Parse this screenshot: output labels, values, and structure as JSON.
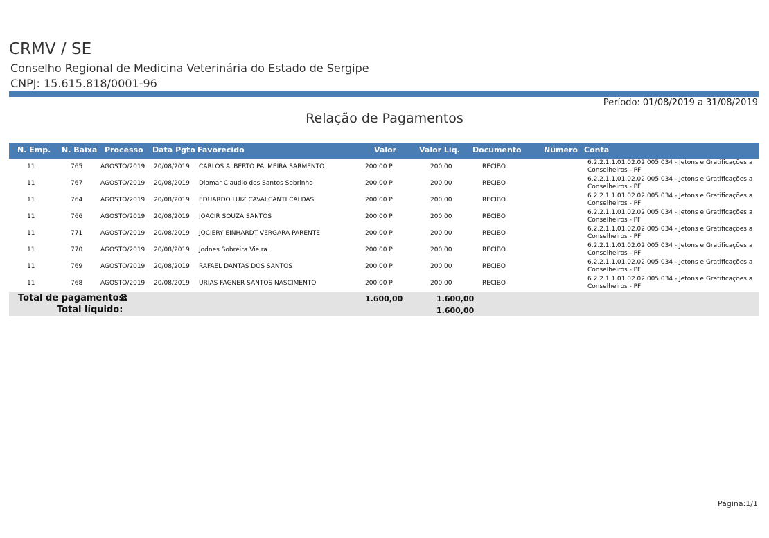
{
  "header": {
    "org": "CRMV / SE",
    "org_name": "Conselho Regional de Medicina Veterinária do Estado de Sergipe",
    "cnpj": "CNPJ: 15.615.818/0001-96",
    "periodo": "Período: 01/08/2019 a 31/08/2019",
    "title": "Relação de Pagamentos"
  },
  "table": {
    "columns": [
      "N. Emp.",
      "N. Baixa",
      "Processo",
      "Data Pgto",
      "Favorecido",
      "Valor",
      "Valor Liq.",
      "Documento",
      "Número",
      "Conta"
    ],
    "rows": [
      {
        "emp": "11",
        "baixa": "765",
        "processo": "AGOSTO/2019",
        "data": "20/08/2019",
        "favorecido": "CARLOS ALBERTO PALMEIRA SARMENTO",
        "valor": "200,00 P",
        "liq": "200,00",
        "documento": "RECIBO",
        "numero": "",
        "conta": "6.2.2.1.1.01.02.02.005.034 - Jetons e Gratificações a Conselheiros - PF"
      },
      {
        "emp": "11",
        "baixa": "767",
        "processo": "AGOSTO/2019",
        "data": "20/08/2019",
        "favorecido": "Diomar Claudio dos Santos Sobrinho",
        "valor": "200,00 P",
        "liq": "200,00",
        "documento": "RECIBO",
        "numero": "",
        "conta": "6.2.2.1.1.01.02.02.005.034 - Jetons e Gratificações a Conselheiros - PF"
      },
      {
        "emp": "11",
        "baixa": "764",
        "processo": "AGOSTO/2019",
        "data": "20/08/2019",
        "favorecido": "EDUARDO LUIZ CAVALCANTI CALDAS",
        "valor": "200,00 P",
        "liq": "200,00",
        "documento": "RECIBO",
        "numero": "",
        "conta": "6.2.2.1.1.01.02.02.005.034 - Jetons e Gratificações a Conselheiros - PF"
      },
      {
        "emp": "11",
        "baixa": "766",
        "processo": "AGOSTO/2019",
        "data": "20/08/2019",
        "favorecido": "JOACIR SOUZA SANTOS",
        "valor": "200,00 P",
        "liq": "200,00",
        "documento": "RECIBO",
        "numero": "",
        "conta": "6.2.2.1.1.01.02.02.005.034 - Jetons e Gratificações a Conselheiros - PF"
      },
      {
        "emp": "11",
        "baixa": "771",
        "processo": "AGOSTO/2019",
        "data": "20/08/2019",
        "favorecido": "JOCIERY EINHARDT VERGARA PARENTE",
        "valor": "200,00 P",
        "liq": "200,00",
        "documento": "RECIBO",
        "numero": "",
        "conta": "6.2.2.1.1.01.02.02.005.034 - Jetons e Gratificações a Conselheiros - PF"
      },
      {
        "emp": "11",
        "baixa": "770",
        "processo": "AGOSTO/2019",
        "data": "20/08/2019",
        "favorecido": "Jodnes Sobreira Vieira",
        "valor": "200,00 P",
        "liq": "200,00",
        "documento": "RECIBO",
        "numero": "",
        "conta": "6.2.2.1.1.01.02.02.005.034 - Jetons e Gratificações a Conselheiros - PF"
      },
      {
        "emp": "11",
        "baixa": "769",
        "processo": "AGOSTO/2019",
        "data": "20/08/2019",
        "favorecido": "RAFAEL DANTAS DOS SANTOS",
        "valor": "200,00 P",
        "liq": "200,00",
        "documento": "RECIBO",
        "numero": "",
        "conta": "6.2.2.1.1.01.02.02.005.034 - Jetons e Gratificações a Conselheiros - PF"
      },
      {
        "emp": "11",
        "baixa": "768",
        "processo": "AGOSTO/2019",
        "data": "20/08/2019",
        "favorecido": "URIAS FAGNER SANTOS NASCIMENTO",
        "valor": "200,00 P",
        "liq": "200,00",
        "documento": "RECIBO",
        "numero": "",
        "conta": "6.2.2.1.1.01.02.02.005.034 - Jetons e Gratificações a Conselheiros - PF"
      }
    ]
  },
  "totals": {
    "label_pagamentos": "Total de pagamentos:",
    "count": "8",
    "valor_total": "1.600,00",
    "liq_total": "1.600,00",
    "label_liquido": "Total líquido:",
    "liquido_total": "1.600,00"
  },
  "footer": {
    "pagina": "Página:1/1"
  },
  "colors": {
    "accent": "#4a7db3",
    "totals_bg": "#e3e3e3"
  }
}
